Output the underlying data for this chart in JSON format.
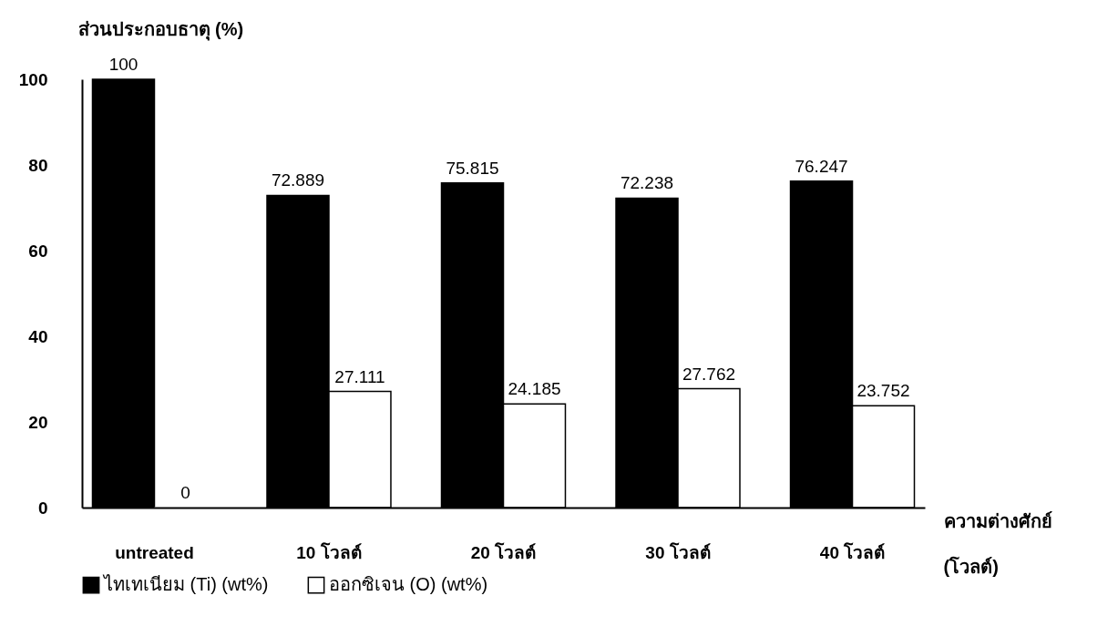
{
  "chart_data": {
    "type": "bar",
    "ylabel": "ส่วนประกอบธาตุ (%)",
    "xlabel": "ความต่างศักย์ (โวลต์)",
    "categories": [
      "untreated",
      "10 โวลต์",
      "20 โวลต์",
      "30 โวลต์",
      "40 โวลต์"
    ],
    "series": [
      {
        "name": "ไทเทเนียม (Ti) (wt%)",
        "color": "#000000",
        "values": [
          100,
          72.889,
          75.815,
          72.238,
          76.247
        ]
      },
      {
        "name": "ออกซิเจน (O)  (wt%)",
        "color": "#ffffff",
        "values": [
          0,
          27.111,
          24.185,
          27.762,
          23.752
        ]
      }
    ],
    "ylim": [
      0,
      100
    ],
    "yticks": [
      0,
      20,
      40,
      60,
      80,
      100
    ],
    "grid": false,
    "legend": "bottom",
    "data_labels": true
  }
}
